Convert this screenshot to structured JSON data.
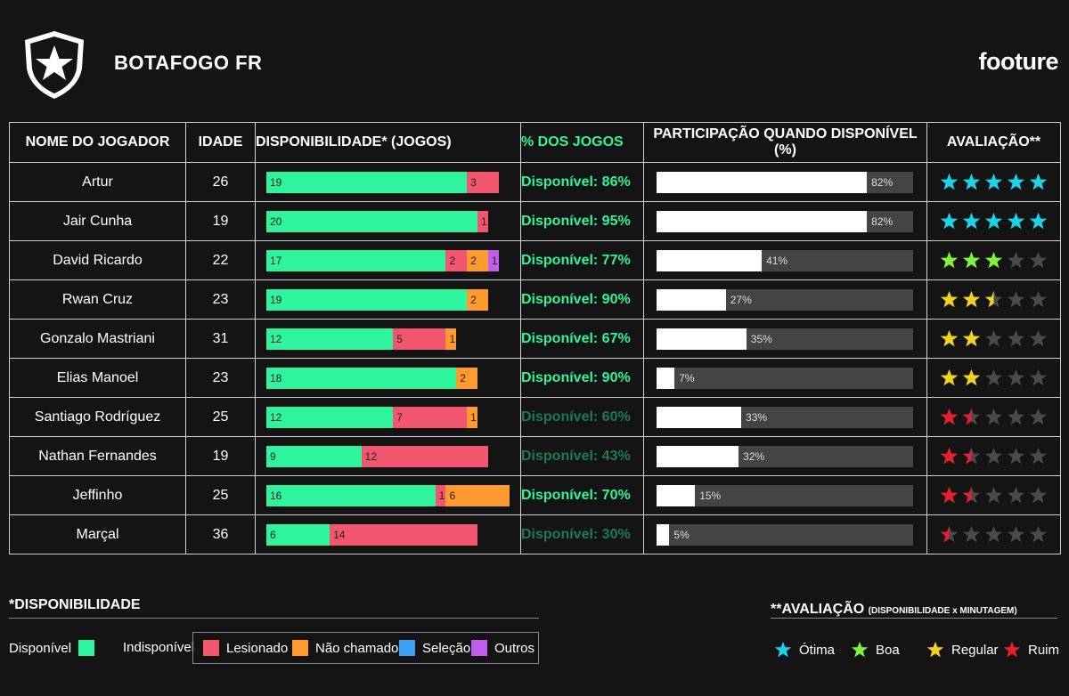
{
  "header": {
    "club": "BOTAFOGO FR",
    "brand": "footure"
  },
  "columns": {
    "name": "NOME DO JOGADOR",
    "age": "IDADE",
    "availability": "DISPONIBILIDADE* (JOGOS)",
    "pct": "% DOS JOGOS",
    "participation": "PARTICIPAÇÃO QUANDO DISPONÍVEL (%)",
    "rating": "AVALIAÇÃO**"
  },
  "colors": {
    "available": "#2ef49e",
    "injured": "#f2566f",
    "not_called": "#ff9a2e",
    "selection": "#3ea0f2",
    "other": "#c25df0",
    "star_otima": "#19d3e6",
    "star_boa": "#7ff23d",
    "star_regular": "#f2d21f",
    "star_ruim": "#e8202e",
    "star_empty": "#4a4a4a",
    "pct_strong": "#2ef49e",
    "pct_weak": "#1d7a55"
  },
  "chart_data": {
    "type": "table",
    "rows": [
      {
        "name": "Artur",
        "age": "26",
        "available": 19,
        "injured": 3,
        "not_called": null,
        "other": null,
        "pct_label": "Disponível: 86%",
        "pct_value": 86,
        "participation": 82,
        "participation_label": "82%",
        "rating": 5,
        "rating_category": "otima"
      },
      {
        "name": "Jair Cunha",
        "age": "19",
        "available": 20,
        "injured": 1,
        "not_called": null,
        "other": null,
        "pct_label": "Disponível: 95%",
        "pct_value": 95,
        "participation": 82,
        "participation_label": "82%",
        "rating": 5,
        "rating_category": "otima"
      },
      {
        "name": "David Ricardo",
        "age": "22",
        "available": 17,
        "injured": 2,
        "not_called": 2,
        "other": 1,
        "pct_label": "Disponível: 77%",
        "pct_value": 77,
        "participation": 41,
        "participation_label": "41%",
        "rating": 3,
        "rating_category": "boa"
      },
      {
        "name": "Rwan Cruz",
        "age": "23",
        "available": 19,
        "injured": null,
        "not_called": 2,
        "other": null,
        "pct_label": "Disponível: 90%",
        "pct_value": 90,
        "participation": 27,
        "participation_label": "27%",
        "rating": 2.5,
        "rating_category": "regular"
      },
      {
        "name": "Gonzalo Mastriani",
        "age": "31",
        "available": 12,
        "injured": 5,
        "not_called": 1,
        "other": null,
        "pct_label": "Disponível: 67%",
        "pct_value": 67,
        "participation": 35,
        "participation_label": "35%",
        "rating": 2,
        "rating_category": "regular"
      },
      {
        "name": "Elias Manoel",
        "age": "23",
        "available": 18,
        "injured": null,
        "not_called": 2,
        "other": null,
        "pct_label": "Disponível: 90%",
        "pct_value": 90,
        "participation": 7,
        "participation_label": "7%",
        "rating": 2,
        "rating_category": "regular"
      },
      {
        "name": "Santiago Rodríguez",
        "age": "25",
        "available": 12,
        "injured": 7,
        "not_called": 1,
        "other": null,
        "pct_label": "Disponível: 60%",
        "pct_value": 60,
        "participation": 33,
        "participation_label": "33%",
        "rating": 1.5,
        "rating_category": "ruim"
      },
      {
        "name": "Nathan Fernandes",
        "age": "19",
        "available": 9,
        "injured": 12,
        "not_called": null,
        "other": null,
        "pct_label": "Disponível: 43%",
        "pct_value": 43,
        "participation": 32,
        "participation_label": "32%",
        "rating": 1.5,
        "rating_category": "ruim"
      },
      {
        "name": "Jeffinho",
        "age": "25",
        "available": 16,
        "injured": 1,
        "not_called": 6,
        "other": null,
        "pct_label": "Disponível: 70%",
        "pct_value": 70,
        "participation": 15,
        "participation_label": "15%",
        "rating": 1.5,
        "rating_category": "ruim"
      },
      {
        "name": "Marçal",
        "age": "36",
        "available": 6,
        "injured": 14,
        "not_called": null,
        "other": null,
        "pct_label": "Disponível: 30%",
        "pct_value": 30,
        "participation": 5,
        "participation_label": "5%",
        "rating": 0.5,
        "rating_category": "ruim"
      }
    ]
  },
  "legend": {
    "availability_title": "*DISPONIBILIDADE",
    "disponivel": "Disponível",
    "indisponivel": "Indisponível",
    "lesionado": "Lesionado",
    "nao_chamado": "Não chamado",
    "selecao": "Seleção",
    "outros": "Outros",
    "rating_title": "**AVALIAÇÃO",
    "rating_subtitle": "(DISPONIBILIDADE x MINUTAGEM)",
    "otima": "Ótima",
    "boa": "Boa",
    "regular": "Regular",
    "ruim": "Ruim"
  }
}
